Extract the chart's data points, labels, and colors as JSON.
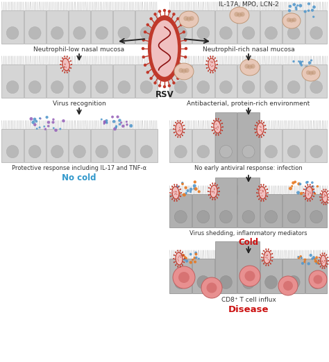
{
  "background_color": "#ffffff",
  "cell_color": "#d5d5d5",
  "cell_border_color": "#aaaaaa",
  "cilia_color": "#bbbbbb",
  "nucleus_color": "#b8b8b8",
  "rsv_outer_color": "#c0392b",
  "rsv_inner_color": "#f0c0c0",
  "rsv_stripe_color": "#8B1010",
  "rsv_spike_color": "#c0392b",
  "virus_mini_inner": "#f0c0c0",
  "virus_mini_outer": "#c0392b",
  "neutrophil_fill": "#e8c8b8",
  "neutrophil_border": "#c09878",
  "neutrophil_lobe": "#c09878",
  "blue_dot": "#5599cc",
  "purple_dot": "#9966bb",
  "orange_dot": "#e87820",
  "teal_dot": "#44aacc",
  "tcell_fill": "#e89090",
  "tcell_border": "#c06060",
  "tcell_nucleus": "#cc6060",
  "text_color": "#333333",
  "no_cold_color": "#3399cc",
  "cold_color": "#cc1111",
  "disease_color": "#cc1111",
  "arrow_color": "#222222",
  "tall_cell_color": "#b0b0b0",
  "tall_cell_border": "#888888",
  "label_left_top": "Neutrophil-low nasal mucosa",
  "label_right_top": "Neutrophil-rich nasal mucosa",
  "label_il17a": "IL-17A, MPO, LCN-2",
  "label_rsv": "RSV",
  "label_virus_recog": "Virus recognition",
  "label_antibact": "Antibacterial, protein-rich environment",
  "label_protective": "Protective response including IL-17 and TNF-α",
  "label_no_cold": "No cold",
  "label_no_early": "No early antiviral response: infection",
  "label_virus_shed": "Virus shedding, inflammatory mediators",
  "label_cold": "Cold",
  "label_cd8": "CD8⁺ T cell influx",
  "label_disease": "Disease"
}
